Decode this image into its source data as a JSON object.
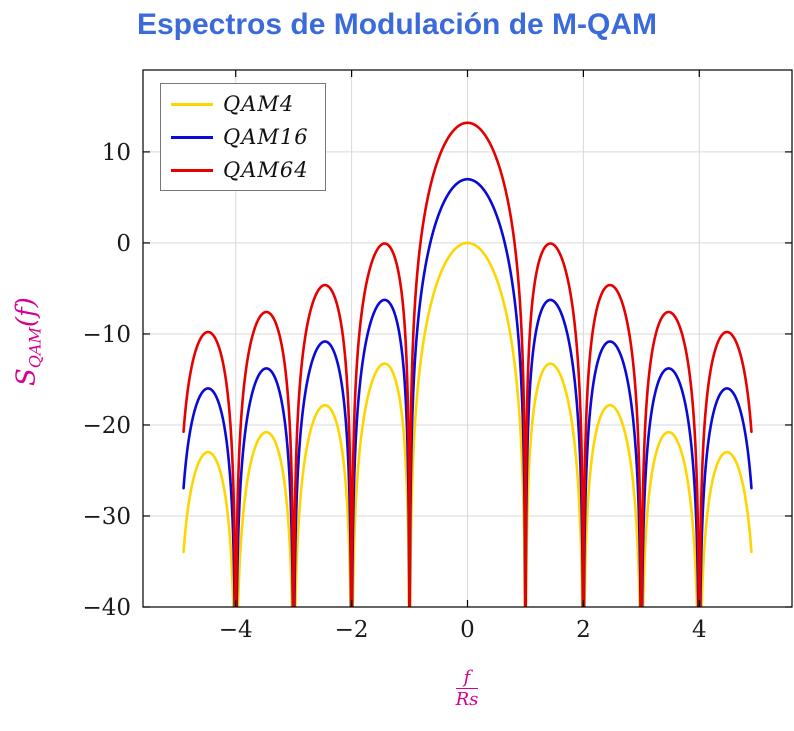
{
  "chart": {
    "title": "Espectros de Modulación de M-QAM",
    "title_color": "#3b6bdb",
    "label_color": "#d6008f",
    "ylabel": {
      "main": "S",
      "sub": "QAM",
      "suffix": "(f)"
    },
    "xlabel": {
      "numerator": "f",
      "denominator": "Rs"
    }
  },
  "chart_data": {
    "type": "line",
    "title": "Espectros de Modulación de M-QAM",
    "xlabel": "f/Rs",
    "ylabel": "S_QAM(f)",
    "xlim": [
      -5.6,
      5.6
    ],
    "ylim": [
      -40,
      19
    ],
    "x_ticks": [
      -4,
      -2,
      0,
      2,
      4
    ],
    "x_tick_labels": [
      "−4",
      "−2",
      "0",
      "2",
      "4"
    ],
    "y_ticks": [
      10,
      0,
      -10,
      -20,
      -30,
      -40
    ],
    "y_tick_labels": [
      "10",
      "0",
      "−10",
      "−20",
      "−30",
      "−40"
    ],
    "grid": "major",
    "grid_color": "#d9d9d9",
    "axis_color": "#000000",
    "legend_position": "top-left",
    "x_data_range": [
      -4.9,
      4.9
    ],
    "function": "y(x) = offset_db + 20*log10(|sin(pi*x)/(pi*x)|), clipped below at -40 dB",
    "nulls_at": [
      -4,
      -3,
      -2,
      -1,
      1,
      2,
      3,
      4
    ],
    "series": [
      {
        "name": "QAM4",
        "color": "#ffd500",
        "offset_db": 0,
        "peak_db": 0
      },
      {
        "name": "QAM16",
        "color": "#0a0ad6",
        "offset_db": 7.0,
        "peak_db": 7.0
      },
      {
        "name": "QAM64",
        "color": "#e60000",
        "offset_db": 13.2,
        "peak_db": 13.2
      }
    ]
  }
}
